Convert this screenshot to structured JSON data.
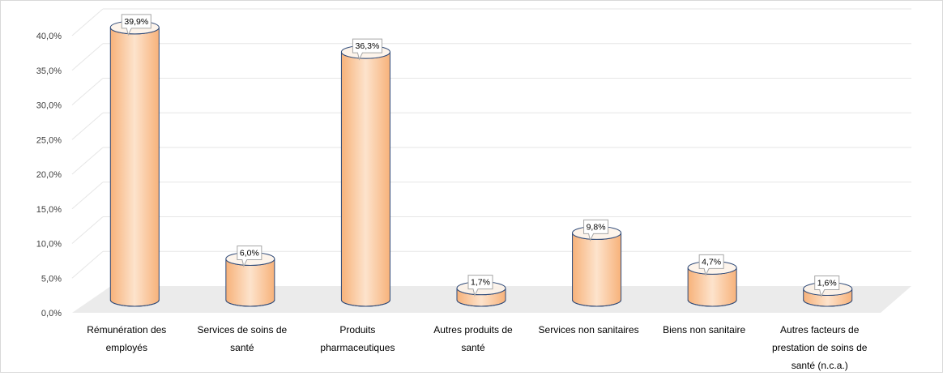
{
  "chart_data": {
    "type": "bar",
    "style": "3d-cylinder",
    "categories": [
      [
        "Rémunération des",
        "employés"
      ],
      [
        "Services de soins de",
        "santé"
      ],
      [
        "Produits",
        "pharmaceutiques"
      ],
      [
        "Autres produits de",
        "santé"
      ],
      [
        "Services non sanitaires"
      ],
      [
        "Biens non sanitaire"
      ],
      [
        "Autres facteurs de",
        "prestation de soins de",
        "santé (n.c.a.)"
      ]
    ],
    "values": [
      39.9,
      6.0,
      36.3,
      1.7,
      9.8,
      4.7,
      1.6
    ],
    "data_labels": [
      "39,9%",
      "6,0%",
      "36,3%",
      "1,7%",
      "9,8%",
      "4,7%",
      "1,6%"
    ],
    "y_ticks": [
      "0,0%",
      "5,0%",
      "10,0%",
      "15,0%",
      "20,0%",
      "25,0%",
      "30,0%",
      "35,0%",
      "40,0%"
    ],
    "ylim": [
      0,
      40
    ],
    "title": "",
    "xlabel": "",
    "ylabel": "",
    "grid": true,
    "legend": "none",
    "colors": {
      "bar_fill_edge": "#f7b27a",
      "bar_fill_center": "#fde3cc",
      "bar_outline": "#2f4a78",
      "floor": "#ebebeb",
      "grid": "#e6e6e6"
    }
  }
}
